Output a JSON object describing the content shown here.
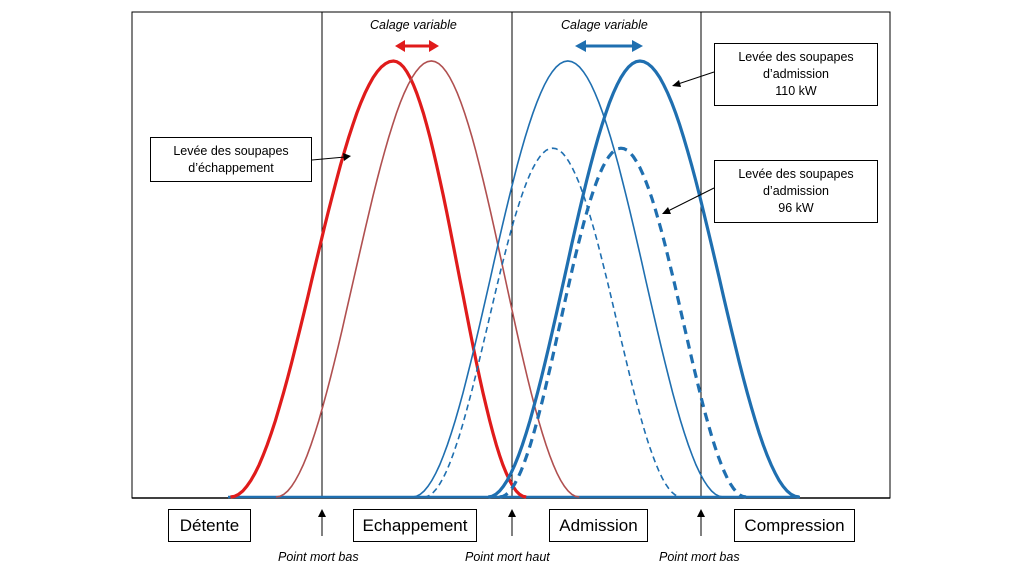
{
  "annotations": {
    "calage_left": "Calage variable",
    "calage_right": "Calage variable",
    "exhaust_box": [
      "Levée des soupapes",
      "d’échappement"
    ],
    "intake_110_box": [
      "Levée des soupapes",
      "d’admission",
      "110 kW"
    ],
    "intake_96_box": [
      "Levée des soupapes",
      "d’admission",
      "96 kW"
    ]
  },
  "phases": [
    "Détente",
    "Echappement",
    "Admission",
    "Compression"
  ],
  "dead_centers": [
    "Point mort bas",
    "Point mort haut",
    "Point mort bas"
  ],
  "colors": {
    "exhaust_bold": "#e01b1b",
    "exhaust_thin": "#b05050",
    "intake": "#1f6fb0",
    "axis": "#000000"
  },
  "chart_data": {
    "type": "line",
    "description_units": "crank angle (arbitrary), lift (normalized)",
    "series": [
      {
        "line": "exhaust_bold",
        "start": 0.13,
        "peak": 0.345,
        "end": 0.52,
        "lift": 1.0,
        "style": "thick-solid"
      },
      {
        "line": "exhaust_thin",
        "start": 0.19,
        "peak": 0.395,
        "end": 0.59,
        "lift": 1.0,
        "style": "thin-solid"
      },
      {
        "line": "intake_thin",
        "start": 0.37,
        "peak": 0.575,
        "end": 0.78,
        "lift": 1.0,
        "style": "thin-solid"
      },
      {
        "line": "intake_bold",
        "start": 0.47,
        "peak": 0.67,
        "end": 0.88,
        "lift": 1.0,
        "style": "thick-solid"
      },
      {
        "line": "intake_96_thin",
        "start": 0.385,
        "peak": 0.555,
        "end": 0.725,
        "lift": 0.8,
        "style": "thin-dashed"
      },
      {
        "line": "intake_96_bold",
        "start": 0.485,
        "peak": 0.645,
        "end": 0.81,
        "lift": 0.8,
        "style": "thick-dashed"
      }
    ]
  }
}
